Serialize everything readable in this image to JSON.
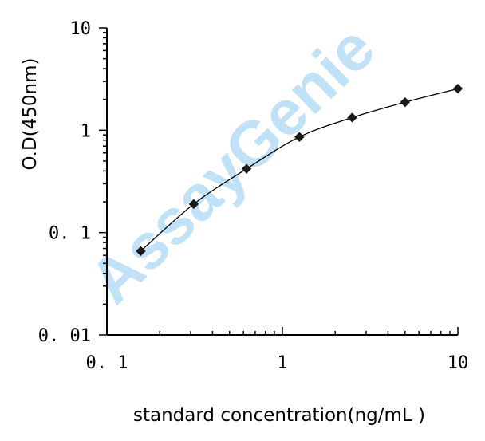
{
  "chart_data": {
    "type": "scatter",
    "xscale": "log",
    "yscale": "log",
    "xlim": [
      0.1,
      10
    ],
    "ylim": [
      0.01,
      10
    ],
    "xlabel": "standard concentration(ng/mL )",
    "ylabel": "O.D(450nm)",
    "x_tick_labels": [
      "0. 1",
      "1",
      "10"
    ],
    "y_tick_labels": [
      "0. 01",
      "0. 1",
      "1",
      "10"
    ],
    "x_tick_values": [
      0.1,
      1,
      10
    ],
    "y_tick_values": [
      0.01,
      0.1,
      1,
      10
    ],
    "grid": false,
    "series": [
      {
        "x": [
          0.156,
          0.3125,
          0.625,
          1.25,
          2.5,
          5,
          10
        ],
        "y": [
          0.066,
          0.19,
          0.42,
          0.86,
          1.33,
          1.88,
          2.55
        ]
      }
    ],
    "fit_line": "smooth curve through points",
    "watermark": "AssayGenie"
  },
  "colors": {
    "axis": "#000000",
    "markers": "#1a1a1a",
    "line": "#000000",
    "watermark": "#8fcaf0"
  }
}
